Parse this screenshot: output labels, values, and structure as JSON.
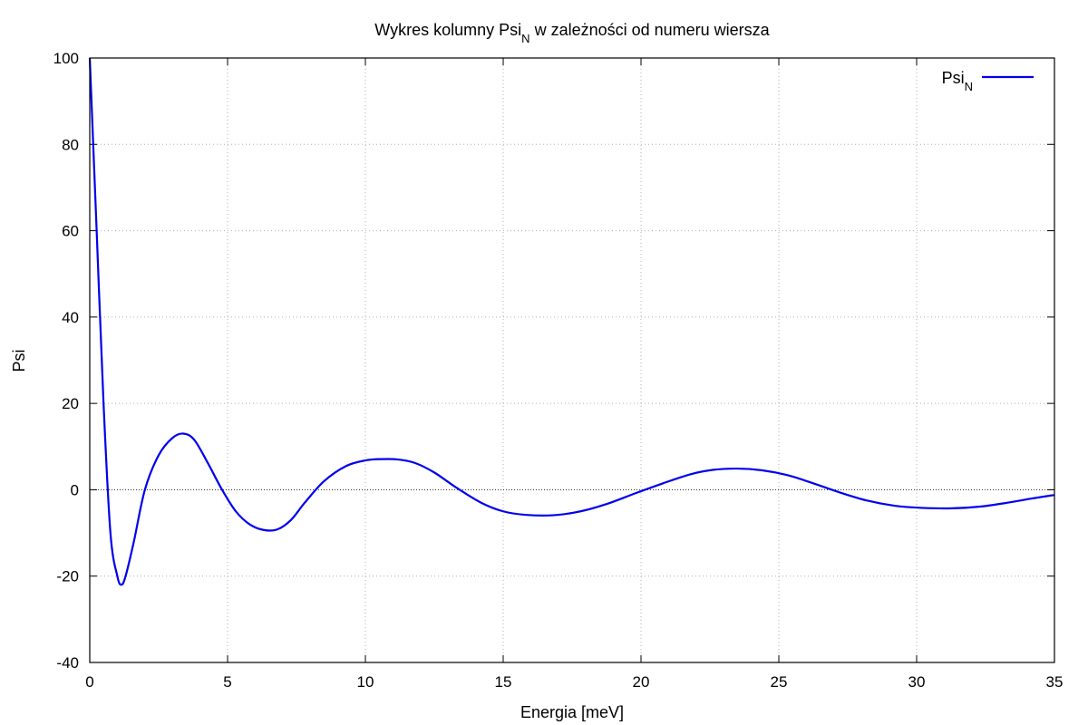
{
  "chart_data": {
    "type": "line",
    "title": "Wykres kolumny Psi",
    "title_subscript": "N",
    "title_rest": " w zależności od numeru wiersza",
    "xlabel": "Energia [meV]",
    "ylabel": "Psi",
    "xlim": [
      0,
      35
    ],
    "ylim": [
      -40,
      100
    ],
    "x_ticks": [
      0,
      5,
      10,
      15,
      20,
      25,
      30,
      35
    ],
    "y_ticks": [
      -40,
      -20,
      0,
      20,
      40,
      60,
      80,
      100
    ],
    "grid": true,
    "legend_position": "top-right",
    "series": [
      {
        "name": "Psi",
        "name_subscript": "N",
        "color": "#0000ee",
        "x": [
          0,
          0.25,
          0.5,
          0.75,
          1.0,
          1.15,
          1.3,
          1.6,
          2.0,
          2.5,
          3.0,
          3.4,
          3.8,
          4.3,
          4.8,
          5.3,
          5.8,
          6.3,
          6.8,
          7.3,
          7.8,
          8.5,
          9.3,
          10.0,
          10.6,
          11.2,
          11.8,
          12.5,
          13.3,
          14.2,
          15.0,
          15.8,
          16.8,
          17.8,
          18.8,
          19.8,
          20.8,
          21.8,
          22.6,
          23.5,
          24.4,
          25.3,
          26.2,
          27.2,
          28.2,
          29.2,
          30.2,
          31.3,
          32.3,
          33.3,
          34.2,
          35.0
        ],
        "y": [
          100,
          60,
          20,
          -10,
          -20,
          -22,
          -20,
          -12,
          0,
          8,
          12,
          13,
          11.5,
          6,
          0,
          -5,
          -8,
          -9.3,
          -9.2,
          -7,
          -3,
          2,
          5.5,
          6.8,
          7.1,
          7.0,
          6.2,
          4,
          0.5,
          -3,
          -5,
          -5.8,
          -5.9,
          -5,
          -3.2,
          -0.8,
          1.5,
          3.6,
          4.6,
          4.9,
          4.5,
          3.4,
          1.6,
          -0.6,
          -2.5,
          -3.7,
          -4.2,
          -4.3,
          -3.9,
          -3,
          -2,
          -1.2
        ]
      }
    ]
  }
}
